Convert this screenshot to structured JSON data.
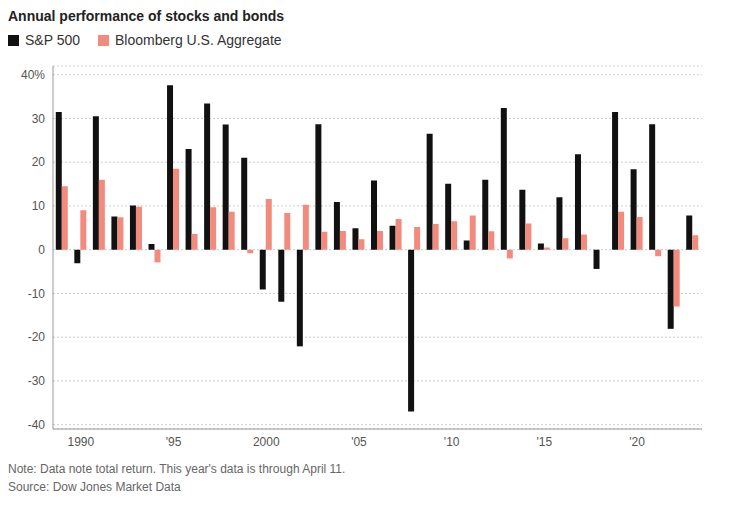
{
  "chart_data": {
    "type": "bar",
    "title": "Annual performance of stocks and bonds",
    "categories": [
      null,
      "1990",
      null,
      null,
      null,
      null,
      "'95",
      null,
      null,
      null,
      null,
      "2000",
      null,
      null,
      null,
      null,
      "'05",
      null,
      null,
      null,
      null,
      "'10",
      null,
      null,
      null,
      null,
      "'15",
      null,
      null,
      null,
      null,
      "'20",
      null,
      null,
      null
    ],
    "series": [
      {
        "name": "S&P 500",
        "color": "#111111",
        "values": [
          31.5,
          -3.1,
          30.5,
          7.6,
          10.1,
          1.3,
          37.6,
          23.0,
          33.4,
          28.6,
          21.0,
          -9.1,
          -11.9,
          -22.1,
          28.7,
          10.9,
          4.9,
          15.8,
          5.5,
          -37.0,
          26.5,
          15.1,
          2.1,
          16.0,
          32.4,
          13.7,
          1.4,
          12.0,
          21.8,
          -4.4,
          31.5,
          18.4,
          28.7,
          -18.1,
          7.8
        ]
      },
      {
        "name": "Bloomberg U.S. Aggregate",
        "color": "#f28b7d",
        "values": [
          14.5,
          9.0,
          16.0,
          7.4,
          9.8,
          -2.9,
          18.5,
          3.6,
          9.7,
          8.7,
          -0.8,
          11.6,
          8.4,
          10.3,
          4.1,
          4.3,
          2.4,
          4.3,
          7.0,
          5.2,
          5.9,
          6.5,
          7.8,
          4.2,
          -2.0,
          6.0,
          0.5,
          2.6,
          3.5,
          0.0,
          8.7,
          7.5,
          -1.5,
          -13.0,
          3.3
        ]
      }
    ],
    "ylim": [
      -41,
      42
    ],
    "yticks": [
      -40,
      -30,
      -20,
      -10,
      0,
      10,
      20,
      30,
      {
        "value": 40,
        "label": "40%"
      }
    ],
    "grid": true,
    "legend": "top left",
    "annotations": [
      "Note: Data note total return. This year's data is through April 11.",
      "Source: Dow Jones Market Data"
    ]
  }
}
